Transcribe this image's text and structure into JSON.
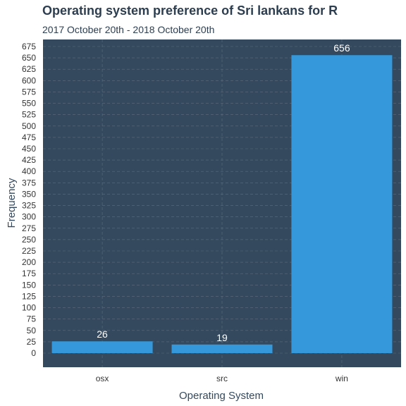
{
  "chart_data": {
    "type": "bar",
    "title": "Operating system preference of Sri lankans for R",
    "subtitle": "2017 October 20th - 2018 October 20th",
    "xlabel": "Operating System",
    "ylabel": "Frequency",
    "categories": [
      "osx",
      "src",
      "win"
    ],
    "values": [
      26,
      19,
      656
    ],
    "data_labels": [
      "26",
      "19",
      "656"
    ],
    "ylim": [
      0,
      675
    ],
    "yticks": [
      0,
      25,
      50,
      75,
      100,
      125,
      150,
      175,
      200,
      225,
      250,
      275,
      300,
      325,
      350,
      375,
      400,
      425,
      450,
      475,
      500,
      525,
      550,
      575,
      600,
      625,
      650,
      675
    ],
    "grid": true,
    "colors": {
      "panel": "#34495e",
      "bar": "#3498db",
      "grid": "#5d6d7e",
      "text": "#2c3e50"
    }
  }
}
